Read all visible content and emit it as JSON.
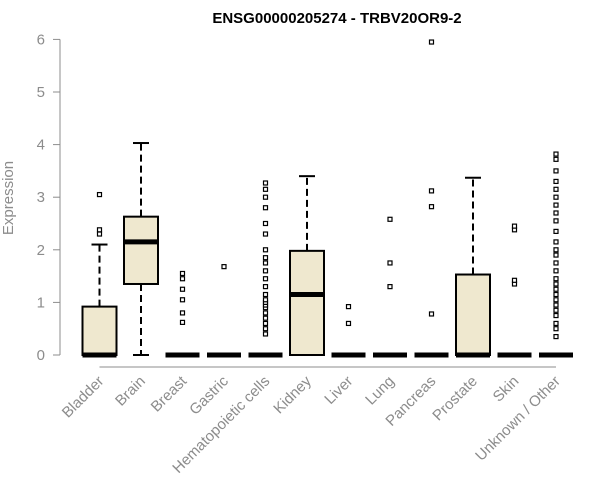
{
  "chart_data": {
    "type": "box",
    "title": "ENSG00000205274 - TRBV20OR9-2",
    "xlabel": "",
    "ylabel": "Expression",
    "ylim": [
      0,
      6
    ],
    "yticks": [
      0,
      1,
      2,
      3,
      4,
      5,
      6
    ],
    "box_fill": "#efe8cf",
    "categories": [
      "Bladder",
      "Brain",
      "Breast",
      "Gastric",
      "Hematopoietic cells",
      "Kidney",
      "Liver",
      "Lung",
      "Pancreas",
      "Prostate",
      "Skin",
      "Unknown / Other"
    ],
    "boxes": [
      {
        "category": "Bladder",
        "min": 0,
        "q1": 0,
        "median": 0,
        "q3": 0.92,
        "max": 2.1,
        "outliers": [
          2.3,
          2.38,
          3.05
        ]
      },
      {
        "category": "Brain",
        "min": 0,
        "q1": 1.35,
        "median": 2.15,
        "q3": 2.63,
        "max": 4.03,
        "outliers": []
      },
      {
        "category": "Breast",
        "min": 0,
        "q1": 0,
        "median": 0,
        "q3": 0,
        "max": 0,
        "outliers": [
          0.62,
          0.8,
          1.05,
          1.25,
          1.45,
          1.55
        ]
      },
      {
        "category": "Gastric",
        "min": 0,
        "q1": 0,
        "median": 0,
        "q3": 0,
        "max": 0,
        "outliers": [
          1.68
        ]
      },
      {
        "category": "Hematopoietic cells",
        "min": 0,
        "q1": 0,
        "median": 0,
        "q3": 0,
        "max": 0,
        "outliers": [
          0.4,
          0.5,
          0.6,
          0.7,
          0.8,
          0.9,
          0.95,
          1.0,
          1.05,
          1.15,
          1.3,
          1.45,
          1.6,
          1.75,
          1.85,
          2.0,
          2.3,
          2.5,
          2.8,
          3.0,
          3.15,
          3.27
        ]
      },
      {
        "category": "Kidney",
        "min": 0,
        "q1": 0,
        "median": 1.15,
        "q3": 1.98,
        "max": 3.4,
        "outliers": []
      },
      {
        "category": "Liver",
        "min": 0,
        "q1": 0,
        "median": 0,
        "q3": 0,
        "max": 0,
        "outliers": [
          0.6,
          0.92
        ]
      },
      {
        "category": "Lung",
        "min": 0,
        "q1": 0,
        "median": 0,
        "q3": 0,
        "max": 0,
        "outliers": [
          1.3,
          1.75,
          2.58
        ]
      },
      {
        "category": "Pancreas",
        "min": 0,
        "q1": 0,
        "median": 0,
        "q3": 0,
        "max": 0,
        "outliers": [
          0.78,
          2.82,
          3.12,
          5.95
        ]
      },
      {
        "category": "Prostate",
        "min": 0,
        "q1": 0,
        "median": 0,
        "q3": 1.53,
        "max": 3.37,
        "outliers": []
      },
      {
        "category": "Skin",
        "min": 0,
        "q1": 0,
        "median": 0,
        "q3": 0,
        "max": 0,
        "outliers": [
          1.35,
          1.42,
          2.38,
          2.45
        ]
      },
      {
        "category": "Unknown / Other",
        "min": 0,
        "q1": 0,
        "median": 0,
        "q3": 0,
        "max": 0,
        "outliers": [
          0.35,
          0.5,
          0.6,
          0.75,
          0.85,
          0.95,
          1.05,
          1.15,
          1.25,
          1.35,
          1.45,
          1.6,
          1.75,
          1.9,
          2.0,
          2.15,
          2.35,
          2.55,
          2.7,
          2.85,
          3.0,
          3.15,
          3.3,
          3.5,
          3.72,
          3.82
        ]
      }
    ]
  }
}
